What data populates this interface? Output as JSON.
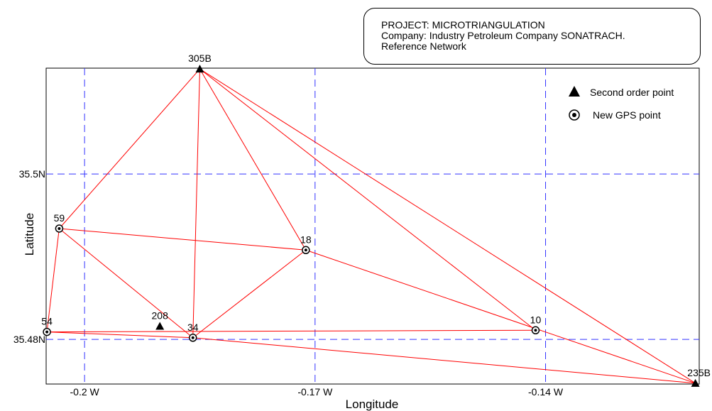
{
  "project": {
    "line1": "PROJECT: MICROTRIANGULATION",
    "line2": "Company: Industry Petroleum Company SONATRACH.",
    "line3": "Reference Network"
  },
  "axes": {
    "xlabel": "Longitude",
    "ylabel": "Latitude",
    "x_ticks": [
      {
        "value": -0.2,
        "label": "-0.2 W"
      },
      {
        "value": -0.17,
        "label": "-0.17 W"
      },
      {
        "value": -0.14,
        "label": "-0.14 W"
      }
    ],
    "y_ticks": [
      {
        "value": 35.5,
        "label": "35.5N"
      },
      {
        "value": 35.48,
        "label": "35.48N"
      }
    ],
    "xlim": [
      -0.205,
      -0.12
    ],
    "ylim": [
      35.4746,
      35.5128
    ],
    "grid": true
  },
  "legend": {
    "second_order": "Second order point",
    "new_gps": "New GPS point"
  },
  "colors": {
    "network_line": "#ff0000",
    "grid_line": "#3333ff",
    "marker": "#000000"
  },
  "points": [
    {
      "id": "305B",
      "type": "second_order",
      "x": -0.185,
      "y": 35.5127
    },
    {
      "id": "235B",
      "type": "second_order",
      "x": -0.1205,
      "y": 35.4747
    },
    {
      "id": "208",
      "type": "second_order",
      "x": -0.1902,
      "y": 35.4816
    },
    {
      "id": "59",
      "type": "gps",
      "x": -0.2033,
      "y": 35.4934
    },
    {
      "id": "18",
      "type": "gps",
      "x": -0.1712,
      "y": 35.4908
    },
    {
      "id": "54",
      "type": "gps",
      "x": -0.2049,
      "y": 35.4809
    },
    {
      "id": "34",
      "type": "gps",
      "x": -0.1859,
      "y": 35.4802
    },
    {
      "id": "10",
      "type": "gps",
      "x": -0.1413,
      "y": 35.4811
    }
  ],
  "edges": [
    [
      "305B",
      "59"
    ],
    [
      "305B",
      "34"
    ],
    [
      "305B",
      "18"
    ],
    [
      "305B",
      "10"
    ],
    [
      "305B",
      "235B"
    ],
    [
      "59",
      "18"
    ],
    [
      "59",
      "34"
    ],
    [
      "59",
      "54"
    ],
    [
      "18",
      "34"
    ],
    [
      "18",
      "235B"
    ],
    [
      "54",
      "34"
    ],
    [
      "54",
      "10"
    ],
    [
      "34",
      "235B"
    ]
  ]
}
